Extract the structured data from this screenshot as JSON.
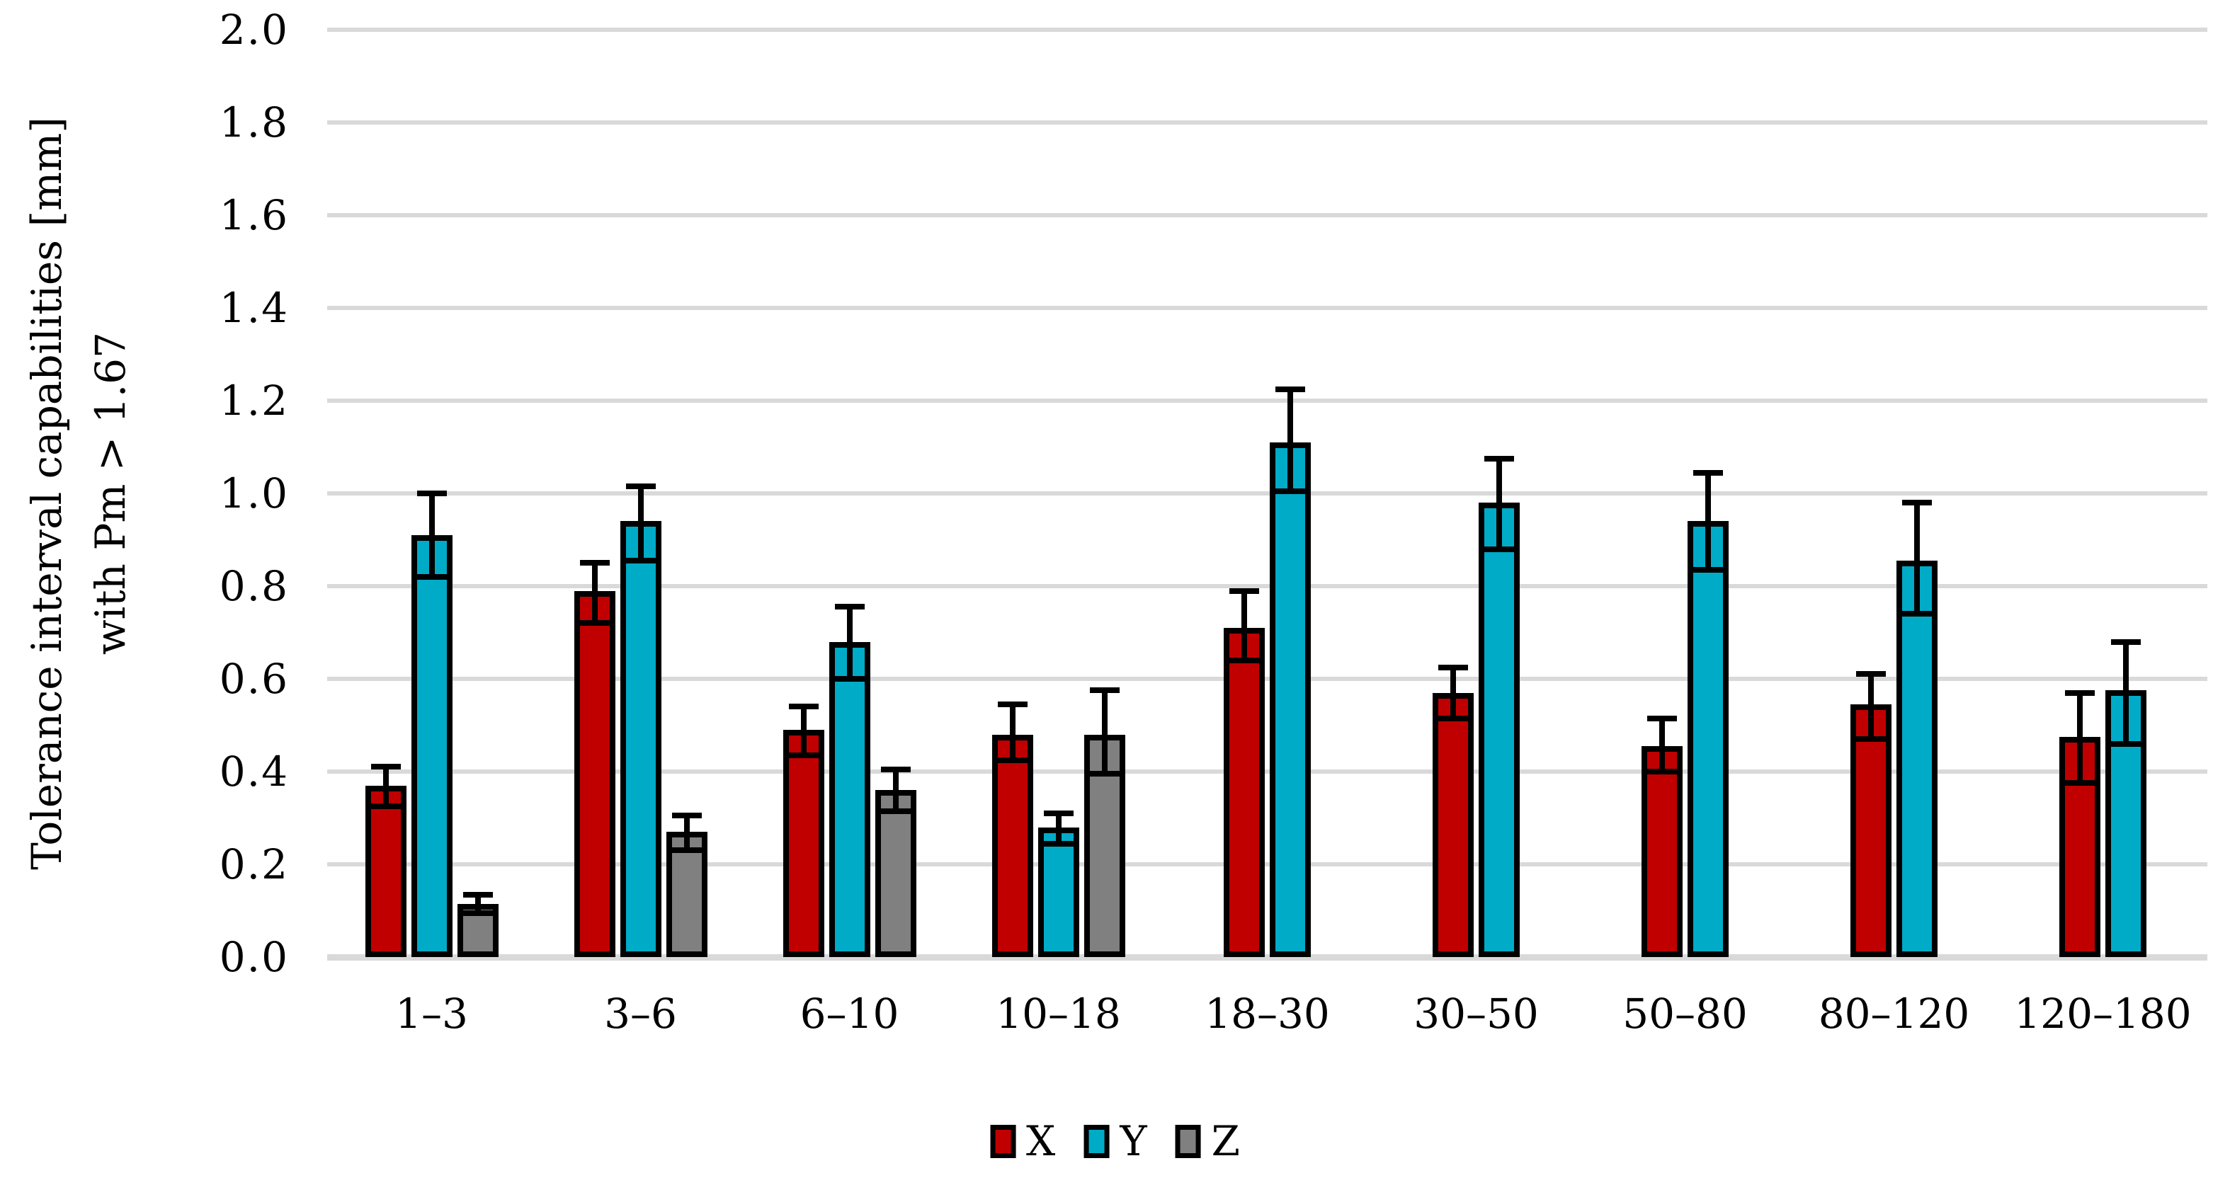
{
  "figure": {
    "background_color": "#FFFFFF",
    "text_color": "#000000",
    "gridline_color": "#D9D9D9",
    "y_axis_title_line1": "Tolerance interval capabilities [mm]",
    "y_axis_title_line2": "with Pm > 1.67"
  },
  "chart_data": {
    "type": "bar",
    "title": "",
    "xlabel": "",
    "ylabel": "Tolerance interval capabilities [mm] with Pm > 1.67",
    "ylim": [
      0.0,
      2.0
    ],
    "ytick_step": 0.2,
    "y_ticks": [
      "2.0",
      "1.8",
      "1.6",
      "1.4",
      "1.2",
      "1.0",
      "0.8",
      "0.6",
      "0.4",
      "0.2",
      "0.0"
    ],
    "grid": "horizontal",
    "error_bars": true,
    "legend_position": "bottom-center",
    "categories": [
      "1–3",
      "3–6",
      "6–10",
      "10–18",
      "18–30",
      "30–50",
      "50–80",
      "80–120",
      "120–180"
    ],
    "series": [
      {
        "name": "X",
        "color": "#C00000",
        "values": [
          0.37,
          0.79,
          0.49,
          0.48,
          0.71,
          0.57,
          0.455,
          0.545,
          0.475
        ],
        "err_plus": [
          0.04,
          0.06,
          0.05,
          0.065,
          0.08,
          0.055,
          0.06,
          0.065,
          0.095
        ],
        "err_minus": [
          0.045,
          0.07,
          0.055,
          0.055,
          0.07,
          0.055,
          0.055,
          0.075,
          0.1
        ]
      },
      {
        "name": "Y",
        "color": "#00ABC8",
        "values": [
          0.91,
          0.94,
          0.68,
          0.28,
          1.11,
          0.98,
          0.94,
          0.855,
          0.575
        ],
        "err_plus": [
          0.09,
          0.075,
          0.075,
          0.03,
          0.115,
          0.095,
          0.105,
          0.125,
          0.105
        ],
        "err_minus": [
          0.09,
          0.085,
          0.08,
          0.035,
          0.105,
          0.1,
          0.105,
          0.115,
          0.115
        ]
      },
      {
        "name": "Z",
        "color": "#808080",
        "values": [
          0.115,
          0.27,
          0.36,
          0.48,
          null,
          null,
          null,
          null,
          null
        ],
        "err_plus": [
          0.02,
          0.035,
          0.045,
          0.095,
          null,
          null,
          null,
          null,
          null
        ],
        "err_minus": [
          0.02,
          0.04,
          0.045,
          0.085,
          null,
          null,
          null,
          null,
          null
        ]
      }
    ]
  },
  "legend": {
    "items": [
      {
        "label": "X",
        "color": "#C00000"
      },
      {
        "label": "Y",
        "color": "#00ABC8"
      },
      {
        "label": "Z",
        "color": "#808080"
      }
    ]
  }
}
